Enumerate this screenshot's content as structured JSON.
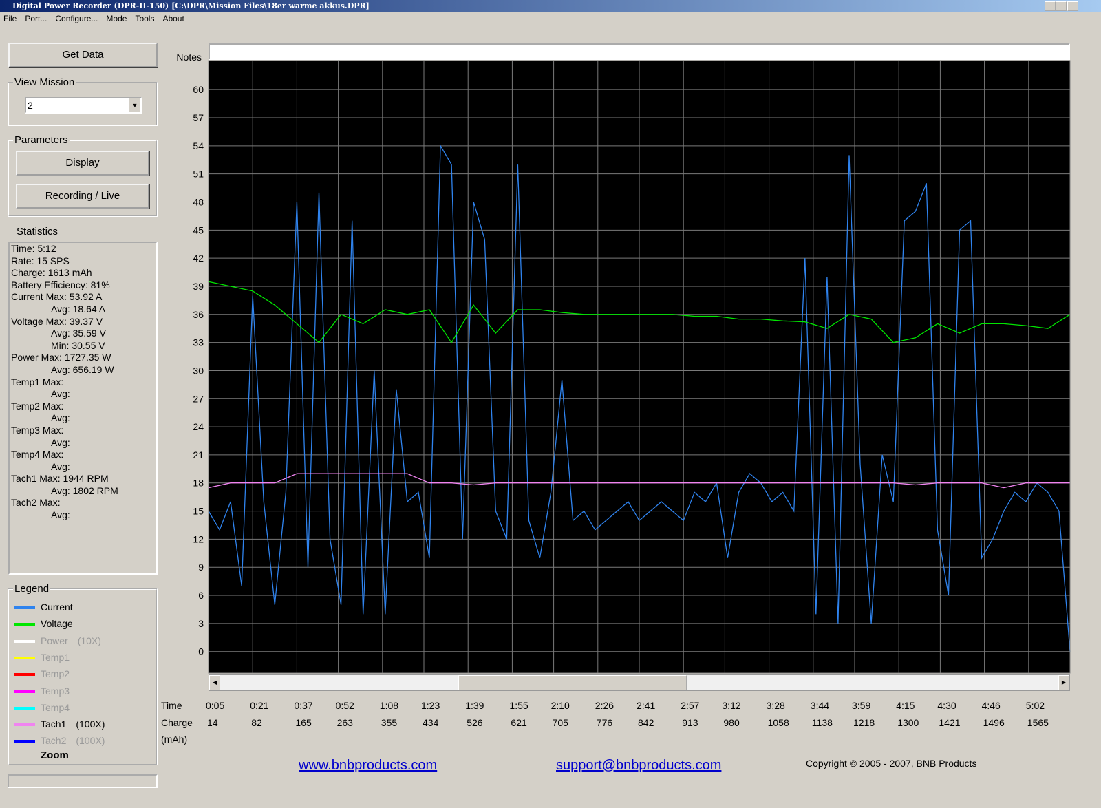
{
  "window": {
    "title": "Digital Power Recorder (DPR-II-150) [C:\\DPR\\Mission Files\\18er warme akkus.DPR]"
  },
  "menu": [
    "File",
    "Port...",
    "Configure...",
    "Mode",
    "Tools",
    "About"
  ],
  "buttons": {
    "get_data": "Get Data",
    "display": "Display",
    "recording": "Recording / Live"
  },
  "view_mission": {
    "label": "View Mission",
    "value": "2"
  },
  "parameters_label": "Parameters",
  "statistics": {
    "label": "Statistics",
    "lines": [
      "Time: 5:12",
      "Rate: 15 SPS",
      "Charge: 1613 mAh",
      "Battery Efficiency: 81%",
      "Current Max: 53.92 A",
      "Avg: 18.64 A",
      "Voltage Max: 39.37 V",
      "Avg: 35.59 V",
      "Min: 30.55 V",
      "Power Max: 1727.35 W",
      "Avg: 656.19 W",
      "Temp1 Max:",
      "Avg:",
      "Temp2 Max:",
      "Avg:",
      "Temp3 Max:",
      "Avg:",
      "Temp4 Max:",
      "Avg:",
      "Tach1 Max: 1944 RPM",
      "Avg: 1802 RPM",
      "Tach2 Max:",
      "Avg:"
    ]
  },
  "legend_label": "Legend",
  "zoom": "Zoom",
  "chart_data": {
    "type": "line",
    "notes_label": "Notes",
    "xlabel": "Time",
    "charge_label": "Charge",
    "charge_unit": "(mAh)",
    "background": "#000000",
    "grid": true,
    "xlim": [
      5,
      317
    ],
    "ylim": [
      -2.3,
      63.1
    ],
    "yticks": [
      0,
      3,
      6,
      9,
      12,
      15,
      18,
      21,
      24,
      27,
      30,
      33,
      36,
      39,
      42,
      45,
      48,
      51,
      54,
      57,
      60
    ],
    "xticks": [
      {
        "value": 5,
        "label": "0:05"
      },
      {
        "value": 21,
        "label": "0:21"
      },
      {
        "value": 37,
        "label": "0:37"
      },
      {
        "value": 52,
        "label": "0:52"
      },
      {
        "value": 68,
        "label": "1:08"
      },
      {
        "value": 83,
        "label": "1:23"
      },
      {
        "value": 99,
        "label": "1:39"
      },
      {
        "value": 115,
        "label": "1:55"
      },
      {
        "value": 130,
        "label": "2:10"
      },
      {
        "value": 146,
        "label": "2:26"
      },
      {
        "value": 161,
        "label": "2:41"
      },
      {
        "value": 177,
        "label": "2:57"
      },
      {
        "value": 192,
        "label": "3:12"
      },
      {
        "value": 208,
        "label": "3:28"
      },
      {
        "value": 224,
        "label": "3:44"
      },
      {
        "value": 239,
        "label": "3:59"
      },
      {
        "value": 255,
        "label": "4:15"
      },
      {
        "value": 270,
        "label": "4:30"
      },
      {
        "value": 286,
        "label": "4:46"
      },
      {
        "value": 302,
        "label": "5:02"
      }
    ],
    "charge_ticks": [
      14,
      82,
      165,
      263,
      355,
      434,
      526,
      621,
      705,
      776,
      842,
      913,
      980,
      1058,
      1138,
      1218,
      1300,
      1421,
      1496,
      1565
    ],
    "series": [
      {
        "name": "Current",
        "color": "#2f83ee",
        "enabled": true,
        "x": [
          5,
          9,
          13,
          17,
          21,
          25,
          29,
          33,
          37,
          41,
          45,
          49,
          53,
          57,
          61,
          65,
          69,
          73,
          77,
          81,
          85,
          89,
          93,
          97,
          101,
          105,
          109,
          113,
          117,
          121,
          125,
          129,
          133,
          137,
          141,
          145,
          149,
          153,
          157,
          161,
          165,
          169,
          173,
          177,
          181,
          185,
          189,
          193,
          197,
          201,
          205,
          209,
          213,
          217,
          221,
          225,
          229,
          233,
          237,
          241,
          245,
          249,
          253,
          257,
          261,
          265,
          269,
          273,
          277,
          281,
          285,
          289,
          293,
          297,
          301,
          305,
          309,
          313,
          317
        ],
        "values": [
          15,
          13,
          16,
          7,
          38,
          16,
          5,
          17,
          48,
          9,
          49,
          12,
          5,
          46,
          4,
          30,
          4,
          28,
          16,
          17,
          10,
          54,
          52,
          12,
          48,
          44,
          15,
          12,
          52,
          14,
          10,
          17,
          29,
          14,
          15,
          13,
          14,
          15,
          16,
          14,
          15,
          16,
          15,
          14,
          17,
          16,
          18,
          10,
          17,
          19,
          18,
          16,
          17,
          15,
          42,
          4,
          40,
          3,
          53,
          20,
          3,
          21,
          16,
          46,
          47,
          50,
          13,
          6,
          45,
          46,
          10,
          12,
          15,
          17,
          16,
          18,
          17,
          15,
          0
        ]
      },
      {
        "name": "Voltage",
        "color": "#00e600",
        "enabled": true,
        "x": [
          5,
          13,
          21,
          29,
          37,
          45,
          53,
          61,
          69,
          77,
          85,
          93,
          101,
          109,
          117,
          125,
          133,
          141,
          149,
          157,
          165,
          173,
          181,
          189,
          197,
          205,
          213,
          221,
          229,
          237,
          245,
          253,
          261,
          269,
          277,
          285,
          293,
          301,
          309,
          317
        ],
        "values": [
          39.5,
          39,
          38.5,
          37,
          35,
          33,
          36,
          35,
          36.5,
          36,
          36.5,
          33,
          37,
          34,
          36.5,
          36.5,
          36.2,
          36,
          36,
          36,
          36,
          36,
          35.8,
          35.8,
          35.5,
          35.5,
          35.3,
          35.2,
          34.5,
          36,
          35.5,
          33,
          33.5,
          35,
          34,
          35,
          35,
          34.8,
          34.5,
          36
        ]
      },
      {
        "name": "Power",
        "note": "(10X)",
        "color": "#ffffff",
        "enabled": false
      },
      {
        "name": "Temp1",
        "color": "#ffff00",
        "enabled": false
      },
      {
        "name": "Temp2",
        "color": "#ff0000",
        "enabled": false
      },
      {
        "name": "Temp3",
        "color": "#ff00ff",
        "enabled": false
      },
      {
        "name": "Temp4",
        "color": "#00ffff",
        "enabled": false
      },
      {
        "name": "Tach1",
        "note": "(100X)",
        "color": "#f084f0",
        "enabled": true,
        "x": [
          5,
          13,
          21,
          29,
          37,
          45,
          53,
          61,
          69,
          77,
          85,
          93,
          101,
          109,
          117,
          125,
          133,
          141,
          149,
          157,
          165,
          173,
          181,
          189,
          197,
          205,
          213,
          221,
          229,
          237,
          245,
          253,
          261,
          269,
          277,
          285,
          293,
          301,
          309,
          317
        ],
        "values": [
          17.5,
          18,
          18,
          18,
          19,
          19,
          19,
          19,
          19,
          19,
          18,
          18,
          17.8,
          18,
          18,
          18,
          18,
          18,
          18,
          18,
          18,
          18,
          18,
          18,
          18,
          18,
          18,
          18,
          18,
          18,
          18,
          18,
          17.8,
          18,
          18,
          18,
          17.5,
          18,
          18,
          18
        ]
      },
      {
        "name": "Tach2",
        "note": "(100X)",
        "color": "#0000ff",
        "enabled": false
      }
    ]
  },
  "footer": {
    "website": "www.bnbproducts.com",
    "email": "support@bnbproducts.com",
    "copyright": "Copyright © 2005 - 2007, BNB Products"
  }
}
